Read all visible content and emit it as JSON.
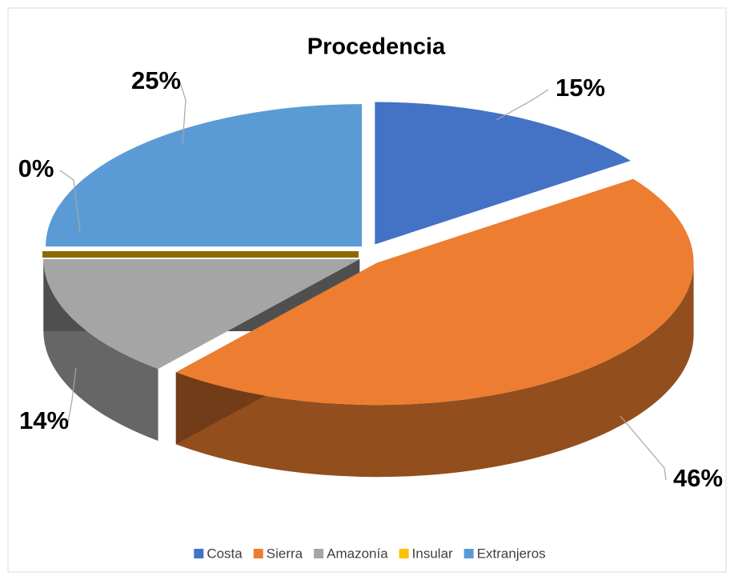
{
  "chart_data": {
    "type": "pie",
    "title": "Procedencia",
    "categories": [
      "Costa",
      "Sierra",
      "Amazonía",
      "Insular",
      "Extranjeros"
    ],
    "values": [
      15,
      46,
      14,
      0,
      25
    ],
    "value_labels": [
      "15%",
      "46%",
      "14%",
      "0%",
      "25%"
    ],
    "colors": [
      "#4472c4",
      "#ed7d31",
      "#a5a5a5",
      "#ffc000",
      "#5b9bd5"
    ],
    "legend": "bottom"
  }
}
